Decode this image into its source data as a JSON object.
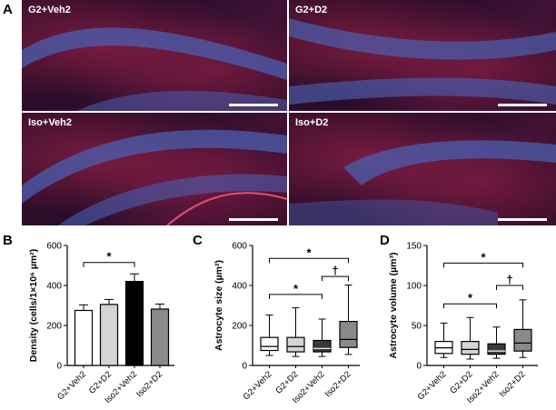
{
  "panels": {
    "a": {
      "letter": "A",
      "images": [
        {
          "label": "G2+Veh2",
          "has_scale_bar": true
        },
        {
          "label": "G2+D2",
          "has_scale_bar": true
        },
        {
          "label": "Iso+Veh2",
          "has_scale_bar": true
        },
        {
          "label": "Iso+D2",
          "has_scale_bar": true
        }
      ]
    },
    "b": {
      "letter": "B"
    },
    "c": {
      "letter": "C"
    },
    "d": {
      "letter": "D"
    }
  },
  "chart_data": [
    {
      "type": "bar",
      "panel": "B",
      "ylabel": "Density (cells/1×10⁶ µm²)",
      "ylim": [
        0,
        600
      ],
      "yticks": [
        0,
        200,
        400,
        600
      ],
      "categories": [
        "G2+Veh2",
        "G2+D2",
        "Iso2+Veh2",
        "Iso2+D2"
      ],
      "values": [
        275,
        305,
        420,
        282
      ],
      "errors": [
        28,
        25,
        38,
        25
      ],
      "colors": [
        "#ffffff",
        "#d4d4d4",
        "#000000",
        "#8a8a8a"
      ],
      "significance": [
        {
          "from": 0,
          "to": 2,
          "y": 515,
          "label": "*"
        }
      ]
    },
    {
      "type": "box",
      "panel": "C",
      "ylabel": "Astrocyte size (µm²)",
      "ylim": [
        0,
        600
      ],
      "yticks": [
        0,
        200,
        400,
        600
      ],
      "categories": [
        "G2+Veh2",
        "G2+D2",
        "Iso2+Veh2",
        "Iso2+D2"
      ],
      "boxes": [
        {
          "min": 50,
          "q1": 75,
          "median": 95,
          "q3": 140,
          "max": 252
        },
        {
          "min": 45,
          "q1": 68,
          "median": 95,
          "q3": 140,
          "max": 288
        },
        {
          "min": 45,
          "q1": 68,
          "median": 85,
          "q3": 125,
          "max": 232
        },
        {
          "min": 55,
          "q1": 90,
          "median": 130,
          "q3": 220,
          "max": 402
        }
      ],
      "colors": [
        "#ffffff",
        "#d4d4d4",
        "#3a3a3a",
        "#8a8a8a"
      ],
      "significance": [
        {
          "from": 0,
          "to": 3,
          "y": 535,
          "label": "*"
        },
        {
          "from": 0,
          "to": 2,
          "y": 355,
          "label": "*"
        },
        {
          "from": 2,
          "to": 3,
          "y": 445,
          "label": "†"
        }
      ]
    },
    {
      "type": "box",
      "panel": "D",
      "ylabel": "Astrocyte volume (µm³)",
      "ylim": [
        0,
        150
      ],
      "yticks": [
        0,
        50,
        100,
        150
      ],
      "categories": [
        "G2+Veh2",
        "G2+D2",
        "Iso2+Veh2",
        "Iso2+D2"
      ],
      "boxes": [
        {
          "min": 10,
          "q1": 15,
          "median": 22,
          "q3": 30,
          "max": 53
        },
        {
          "min": 8,
          "q1": 14,
          "median": 20,
          "q3": 30,
          "max": 60
        },
        {
          "min": 9,
          "q1": 14,
          "median": 18,
          "q3": 27,
          "max": 48
        },
        {
          "min": 10,
          "q1": 18,
          "median": 28,
          "q3": 45,
          "max": 82
        }
      ],
      "colors": [
        "#ffffff",
        "#d4d4d4",
        "#3a3a3a",
        "#8a8a8a"
      ],
      "significance": [
        {
          "from": 0,
          "to": 3,
          "y": 128,
          "label": "*"
        },
        {
          "from": 0,
          "to": 2,
          "y": 77,
          "label": "*"
        },
        {
          "from": 2,
          "to": 3,
          "y": 100,
          "label": "†"
        }
      ]
    }
  ]
}
